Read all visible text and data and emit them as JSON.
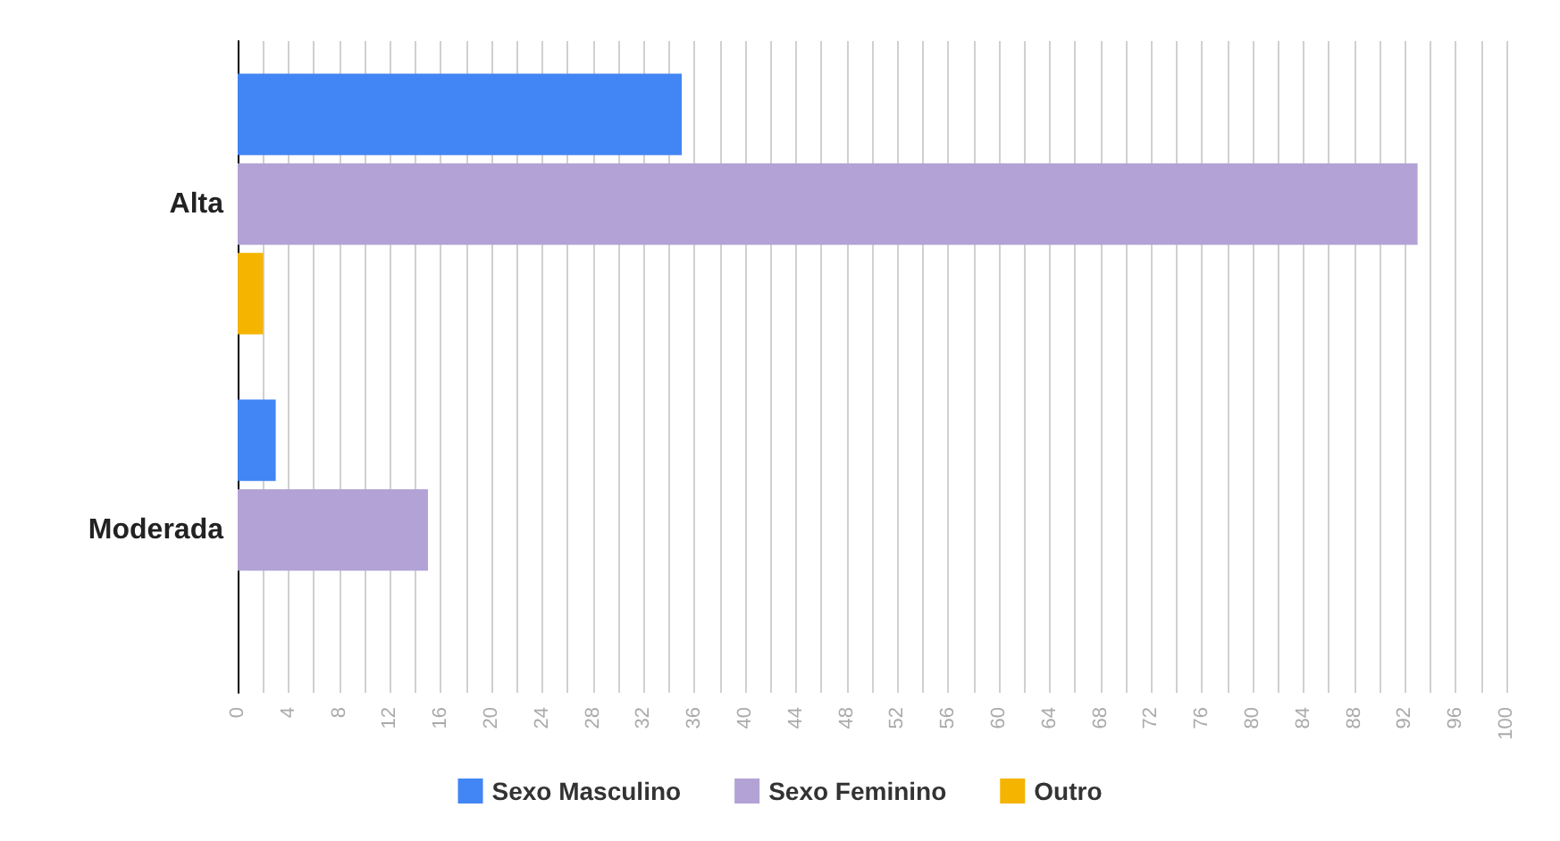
{
  "chart_data": {
    "type": "bar",
    "orientation": "horizontal",
    "categories": [
      "Alta",
      "Moderada"
    ],
    "series": [
      {
        "name": "Sexo Masculino",
        "color": "#4285f4",
        "values": [
          35,
          3
        ]
      },
      {
        "name": "Sexo Feminino",
        "color": "#b3a2d6",
        "values": [
          93,
          15
        ]
      },
      {
        "name": "Outro",
        "color": "#f4b400",
        "values": [
          2,
          0
        ]
      }
    ],
    "xlim": [
      0,
      100
    ],
    "xticks": [
      0,
      {
        "value": 2,
        "label": null
      },
      4,
      {
        "value": 6,
        "label": null
      },
      8,
      {
        "value": 10,
        "label": null
      },
      12,
      {
        "value": 14,
        "label": null
      },
      16,
      {
        "value": 18,
        "label": null
      },
      20,
      {
        "value": 22,
        "label": null
      },
      24,
      {
        "value": 26,
        "label": null
      },
      28,
      {
        "value": 30,
        "label": null
      },
      32,
      {
        "value": 34,
        "label": null
      },
      36,
      {
        "value": 38,
        "label": null
      },
      40,
      {
        "value": 42,
        "label": null
      },
      44,
      {
        "value": 46,
        "label": null
      },
      48,
      {
        "value": 50,
        "label": null
      },
      52,
      {
        "value": 54,
        "label": null
      },
      56,
      {
        "value": 58,
        "label": null
      },
      60,
      {
        "value": 62,
        "label": null
      },
      64,
      {
        "value": 66,
        "label": null
      },
      68,
      {
        "value": 70,
        "label": null
      },
      72,
      {
        "value": 74,
        "label": null
      },
      76,
      {
        "value": 78,
        "label": null
      },
      80,
      {
        "value": 82,
        "label": null
      },
      84,
      {
        "value": 86,
        "label": null
      },
      88,
      {
        "value": 90,
        "label": null
      },
      92,
      {
        "value": 94,
        "label": null
      },
      96,
      {
        "value": 98,
        "label": null
      },
      100
    ],
    "grid": "x",
    "legend": "bottom"
  }
}
